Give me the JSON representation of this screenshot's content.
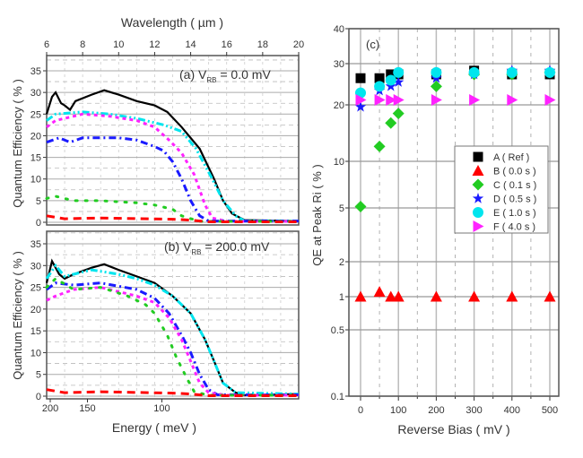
{
  "colors": {
    "A": "#000000",
    "B": "#ff0000",
    "C": "#22cc22",
    "D": "#1a1aff",
    "E": "#00e5ee",
    "F": "#ff22ff"
  },
  "chart_data": [
    {
      "id": "a",
      "type": "line",
      "annotation": {
        "prefix": "(a) V",
        "sub": "RB",
        "suffix": " = 0.0 mV"
      },
      "top_xlabel": "Wavelength ( µm )",
      "xlabel": "",
      "ylabel": "Quantum Efficiency ( % )",
      "xlim": [
        6,
        20
      ],
      "top_xticks": [
        6,
        8,
        10,
        12,
        14,
        16,
        18,
        20
      ],
      "ylim": [
        0,
        35
      ],
      "yticks": [
        0,
        5,
        10,
        15,
        20,
        25,
        30,
        35
      ],
      "grid": true,
      "series": [
        {
          "key": "A",
          "style": "solid",
          "x": [
            6,
            6.3,
            6.5,
            6.8,
            7,
            7.3,
            7.6,
            8.5,
            9.2,
            10,
            11,
            12,
            12.7,
            13.5,
            14.5,
            15.3,
            15.8,
            16.3,
            17,
            20
          ],
          "y": [
            25,
            29,
            30,
            27.5,
            27,
            26,
            28,
            29.5,
            30.5,
            29.5,
            28,
            27,
            25.5,
            22,
            17,
            10,
            5,
            2,
            0.5,
            0.3
          ]
        },
        {
          "key": "E",
          "style": "dashdotdot",
          "x": [
            6,
            6.5,
            8,
            9.5,
            11,
            12.5,
            13.5,
            14.3,
            15.2,
            15.8,
            16.5,
            17,
            20
          ],
          "y": [
            23.5,
            25,
            25.5,
            25,
            24,
            22.5,
            21,
            17,
            10,
            5,
            1.5,
            0.3,
            0.3
          ]
        },
        {
          "key": "F",
          "style": "shortdash",
          "x": [
            6,
            6.5,
            8,
            9.5,
            11,
            12,
            12.8,
            13.5,
            14.2,
            14.8,
            15.2,
            16,
            20
          ],
          "y": [
            22,
            23.5,
            25,
            24.5,
            23.5,
            22,
            19,
            16,
            11,
            4,
            1,
            0.2,
            0.2
          ]
        },
        {
          "key": "D",
          "style": "dashdot",
          "x": [
            6,
            6.7,
            7.3,
            8,
            10,
            11,
            12,
            12.5,
            13,
            13.5,
            14,
            14.5,
            15,
            20
          ],
          "y": [
            18.5,
            19.5,
            18.5,
            19.5,
            19.5,
            19,
            17.5,
            16.5,
            14,
            10,
            5,
            1.5,
            0.3,
            0.3
          ]
        },
        {
          "key": "C",
          "style": "dotted",
          "x": [
            6,
            6.5,
            7.5,
            9,
            11,
            12,
            13,
            13.5,
            14.5,
            20
          ],
          "y": [
            5.5,
            6,
            5,
            5,
            4.5,
            4,
            3,
            1.5,
            0.2,
            0.2
          ]
        },
        {
          "key": "B",
          "style": "dashed",
          "x": [
            6,
            7,
            9,
            13,
            14,
            15,
            20
          ],
          "y": [
            1.5,
            0.8,
            1,
            0.7,
            0.5,
            0.1,
            0.1
          ]
        }
      ]
    },
    {
      "id": "b",
      "type": "line",
      "annotation": {
        "prefix": "(b) V",
        "sub": "RB",
        "suffix": " = 200.0 mV"
      },
      "xlabel": "Energy ( meV )",
      "ylabel": "Quantum Efficiency ( % )",
      "xlim": [
        6,
        20
      ],
      "bottom_xticks": [
        200,
        150,
        100
      ],
      "ylim": [
        0,
        35
      ],
      "yticks": [
        0,
        5,
        10,
        15,
        20,
        25,
        30,
        35
      ],
      "grid": true,
      "series": [
        {
          "key": "A",
          "style": "solid",
          "x": [
            6,
            6.3,
            6.7,
            7,
            7.5,
            8.5,
            9.2,
            10,
            11,
            12,
            13,
            14,
            14.8,
            15.3,
            15.8,
            16.5,
            17,
            20
          ],
          "y": [
            26,
            31,
            28,
            27,
            28,
            29.5,
            30.3,
            29,
            27.5,
            26,
            23,
            19,
            13,
            8,
            3,
            0.8,
            0.2,
            0.5
          ]
        },
        {
          "key": "E",
          "style": "dashdotdot",
          "x": [
            6,
            6.5,
            7,
            8.5,
            10,
            11,
            12,
            13,
            14,
            14.8,
            15.3,
            15.8,
            16.5,
            20
          ],
          "y": [
            27,
            30,
            27.5,
            29,
            28,
            27,
            25.5,
            23,
            19,
            13,
            8,
            3,
            0.8,
            0.5
          ]
        },
        {
          "key": "D",
          "style": "dashdot",
          "x": [
            6,
            6.5,
            7.5,
            9,
            11,
            12,
            12.8,
            13.5,
            14,
            14.5,
            15,
            15.5,
            20
          ],
          "y": [
            24.5,
            26,
            25.5,
            26,
            24.5,
            22.5,
            19,
            14,
            10,
            5,
            1.5,
            0.3,
            0.3
          ]
        },
        {
          "key": "F",
          "style": "shortdash",
          "x": [
            6,
            6.5,
            7.5,
            9,
            11,
            12,
            12.8,
            13.5,
            14,
            14.5,
            15,
            16,
            20
          ],
          "y": [
            22,
            23,
            24.5,
            25,
            23,
            21.5,
            18,
            13,
            8,
            3,
            0.8,
            0.2,
            0.2
          ]
        },
        {
          "key": "C",
          "style": "dotted",
          "x": [
            6,
            6.5,
            7.5,
            9,
            10.5,
            11.5,
            12,
            12.7,
            13.2,
            13.8,
            14.2,
            15,
            20
          ],
          "y": [
            25,
            27,
            24.5,
            25,
            23,
            21,
            19,
            14,
            9,
            4,
            1,
            0.2,
            0.2
          ]
        },
        {
          "key": "B",
          "style": "dashed",
          "x": [
            6,
            7,
            9,
            13,
            14,
            15,
            20
          ],
          "y": [
            1.5,
            0.8,
            1,
            0.7,
            0.5,
            0.1,
            0.1
          ]
        }
      ]
    },
    {
      "id": "c",
      "type": "scatter",
      "annotation": "(c)",
      "xlabel": "Reverse Bias ( mV )",
      "ylabel": "QE at Peak Ri ( % )",
      "xlim": [
        -25,
        515
      ],
      "xticks": [
        0,
        100,
        200,
        300,
        400,
        500
      ],
      "ylim": [
        0.1,
        40
      ],
      "yscale": "log",
      "yticks": [
        0.1,
        0.5,
        1,
        2,
        5,
        10,
        20,
        30,
        40
      ],
      "grid": true,
      "legend_position": "center-right",
      "x": [
        0,
        50,
        80,
        100,
        200,
        300,
        400,
        500
      ],
      "series": [
        {
          "key": "A",
          "name": "A ( Ref )",
          "marker": "square",
          "y": [
            26,
            26,
            27,
            27,
            27,
            28,
            27,
            27
          ]
        },
        {
          "key": "B",
          "name": "B ( 0.0 s )",
          "marker": "triangle-up",
          "y": [
            1,
            1.1,
            1,
            1,
            1,
            1,
            1,
            1
          ]
        },
        {
          "key": "C",
          "name": "C ( 0.1 s )",
          "marker": "diamond",
          "y": [
            5.1,
            12,
            16,
            18,
            24,
            27,
            27,
            27.5
          ]
        },
        {
          "key": "D",
          "name": "D ( 0.5 s )",
          "marker": "star",
          "y": [
            19.5,
            23,
            24,
            25,
            26,
            27,
            28,
            28
          ]
        },
        {
          "key": "E",
          "name": "E ( 1.0 s )",
          "marker": "circle",
          "y": [
            22.5,
            24,
            25.5,
            27.5,
            27.5,
            27.5,
            27.5,
            27.5
          ]
        },
        {
          "key": "F",
          "name": "F ( 4.0 s )",
          "marker": "triangle-right",
          "y": [
            21,
            21,
            21,
            21,
            21,
            21,
            21,
            21
          ]
        }
      ]
    }
  ]
}
